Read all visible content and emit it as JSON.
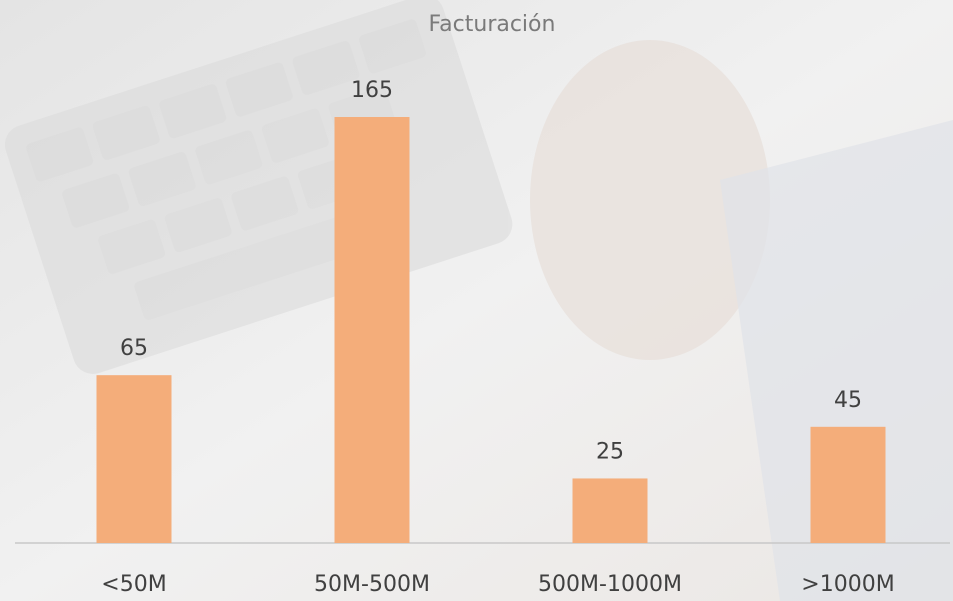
{
  "chart_data": {
    "type": "bar",
    "title": "Facturación",
    "categories": [
      "<50M",
      "50M-500M",
      "500M-1000M",
      ">1000M"
    ],
    "values": [
      65,
      165,
      25,
      45
    ],
    "color": "#f4ad7a"
  }
}
